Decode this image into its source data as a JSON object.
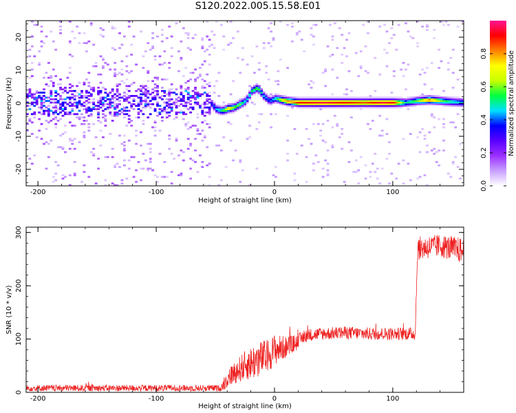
{
  "figure": {
    "title": "S120.2022.005.15.58.E01"
  },
  "chart_data": [
    {
      "type": "heatmap",
      "xlabel": "Height of straight line (km)",
      "ylabel": "Frequency (Hz)",
      "xlim": [
        -210,
        160
      ],
      "ylim": [
        -25,
        25
      ],
      "xticks": [
        -200,
        -100,
        0,
        100
      ],
      "yticks": [
        -20,
        -10,
        0,
        10,
        20
      ],
      "colorbar": {
        "label": "Normalized spectral amplitude",
        "range": [
          0,
          1
        ],
        "ticks": [
          0.0,
          0.2,
          0.4,
          0.6,
          0.8
        ],
        "colormap": [
          "#ffffff",
          "#c8a0ff",
          "#9b30ff",
          "#5a00ff",
          "#0000ff",
          "#00e0ff",
          "#00ff40",
          "#c8ff00",
          "#ffff00",
          "#ff8000",
          "#ff0000",
          "#ff1493"
        ]
      },
      "ridge": {
        "description_points": [
          {
            "x": -55,
            "y": 0.0,
            "amp": 0.35
          },
          {
            "x": -50,
            "y": -2.0,
            "amp": 0.45
          },
          {
            "x": -45,
            "y": -2.5,
            "amp": 0.55
          },
          {
            "x": -40,
            "y": -1.8,
            "amp": 0.75
          },
          {
            "x": -35,
            "y": -1.5,
            "amp": 0.6
          },
          {
            "x": -30,
            "y": -0.5,
            "amp": 0.6
          },
          {
            "x": -25,
            "y": 0.5,
            "amp": 0.45
          },
          {
            "x": -20,
            "y": 3.5,
            "amp": 0.55
          },
          {
            "x": -15,
            "y": 4.5,
            "amp": 0.6
          },
          {
            "x": -10,
            "y": 2.0,
            "amp": 0.45
          },
          {
            "x": -5,
            "y": 0.5,
            "amp": 0.4
          },
          {
            "x": 0,
            "y": 1.2,
            "amp": 0.5
          },
          {
            "x": 5,
            "y": 0.8,
            "amp": 0.7
          },
          {
            "x": 10,
            "y": 0.4,
            "amp": 0.8
          },
          {
            "x": 20,
            "y": 0.0,
            "amp": 0.9
          },
          {
            "x": 40,
            "y": 0.0,
            "amp": 0.95
          },
          {
            "x": 60,
            "y": 0.0,
            "amp": 0.9
          },
          {
            "x": 75,
            "y": 0.0,
            "amp": 0.85
          },
          {
            "x": 90,
            "y": 0.0,
            "amp": 0.95
          },
          {
            "x": 100,
            "y": 0.0,
            "amp": 0.9
          },
          {
            "x": 110,
            "y": 0.0,
            "amp": 0.5
          },
          {
            "x": 120,
            "y": 0.5,
            "amp": 0.6
          },
          {
            "x": 130,
            "y": 0.8,
            "amp": 0.85
          },
          {
            "x": 140,
            "y": 0.5,
            "amp": 0.6
          },
          {
            "x": 150,
            "y": 0.2,
            "amp": 0.5
          },
          {
            "x": 160,
            "y": 0.0,
            "amp": 0.45
          }
        ]
      },
      "noise_region": {
        "x_from": -210,
        "x_to": -55,
        "amp_max": 0.25
      }
    },
    {
      "type": "line",
      "xlabel": "Height of straight line (km)",
      "ylabel": "SNR (10 * v/v)",
      "xlim": [
        -210,
        160
      ],
      "ylim": [
        0,
        310
      ],
      "xticks": [
        -200,
        -100,
        0,
        100
      ],
      "yticks": [
        0,
        100,
        200,
        300
      ],
      "color": "#ee2222",
      "series": [
        {
          "x": [
            -210,
            -180,
            -150,
            -120,
            -90,
            -60,
            -45,
            -42,
            -35,
            -25,
            -15,
            -5,
            0,
            10,
            20,
            25,
            30,
            40,
            60,
            80,
            100,
            118,
            119,
            121,
            140,
            160
          ],
          "y": [
            8,
            8,
            8,
            8,
            8,
            8,
            8,
            20,
            35,
            50,
            60,
            70,
            80,
            85,
            95,
            105,
            108,
            110,
            112,
            110,
            110,
            110,
            110,
            270,
            275,
            265
          ],
          "noise_amplitude": [
            6,
            6,
            6,
            6,
            6,
            6,
            6,
            15,
            20,
            28,
            35,
            30,
            30,
            20,
            15,
            12,
            12,
            12,
            12,
            12,
            12,
            12,
            12,
            22,
            22,
            25
          ]
        }
      ]
    }
  ]
}
